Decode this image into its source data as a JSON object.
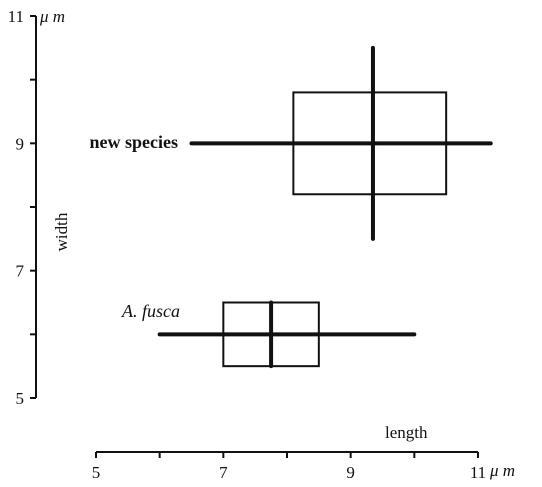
{
  "chart_data": {
    "type": "range-box",
    "xlabel": "length",
    "ylabel": "width",
    "unit": "μ m",
    "xlim": [
      5,
      11
    ],
    "ylim": [
      5,
      11
    ],
    "x_ticks": [
      5,
      6,
      7,
      8,
      9,
      10,
      11
    ],
    "x_tick_labels": [
      "5",
      "",
      "7",
      "",
      "9",
      "",
      "11"
    ],
    "y_ticks": [
      5,
      6,
      7,
      8,
      9,
      10,
      11
    ],
    "y_tick_labels": [
      "5",
      "",
      "7",
      "",
      "9",
      "",
      "11"
    ],
    "grid": false,
    "series": [
      {
        "name": "new species",
        "name_style": "bold",
        "length_range": [
          6.5,
          11.2
        ],
        "length_box": [
          8.1,
          10.5
        ],
        "length_mean": 9.35,
        "width_range": [
          7.5,
          10.5
        ],
        "width_box": [
          8.2,
          9.8
        ],
        "width_mean": 9.0
      },
      {
        "name": "A. fusca",
        "name_style": "italic",
        "length_range": [
          6.0,
          10.0
        ],
        "length_box": [
          7.0,
          8.5
        ],
        "length_mean": 7.75,
        "width_range": [
          6.0,
          6.0
        ],
        "width_box": [
          5.5,
          6.5
        ],
        "width_mean": 6.0
      }
    ],
    "colors": {
      "ink": "#111111",
      "background": "#ffffff"
    }
  }
}
